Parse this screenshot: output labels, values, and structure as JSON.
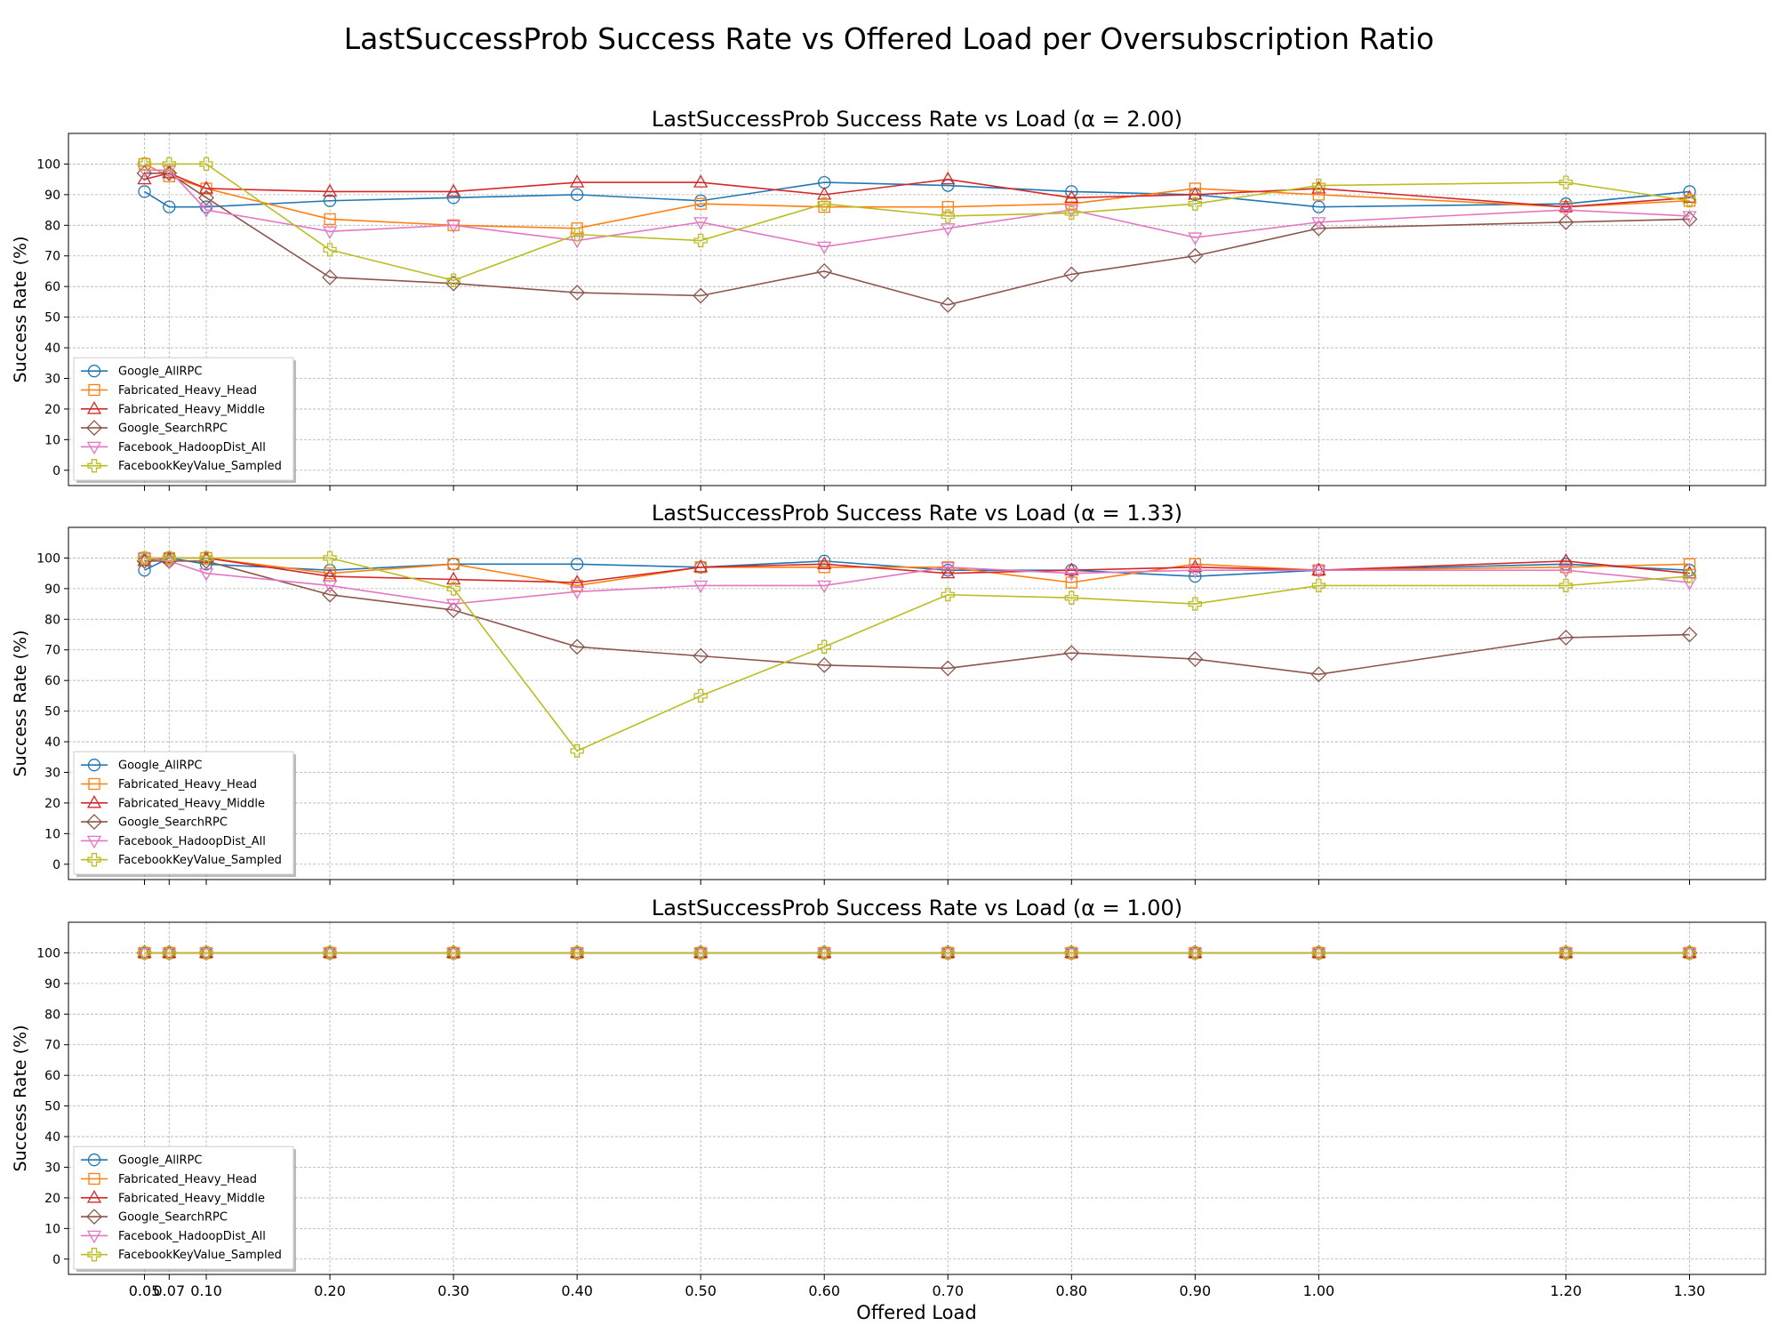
{
  "title": "LastSuccessProb Success Rate vs Offered Load per Oversubscription Ratio",
  "xlabel": "Offered Load",
  "x_tick_labels": [
    "0.05",
    "0.07",
    "0.10",
    "0.20",
    "0.30",
    "0.40",
    "0.50",
    "0.60",
    "0.70",
    "0.80",
    "0.90",
    "1.00",
    "1.20",
    "1.30"
  ],
  "y_tick_labels": [
    "0",
    "10",
    "20",
    "30",
    "40",
    "50",
    "60",
    "70",
    "80",
    "90",
    "100"
  ],
  "series_styles": [
    {
      "name": "Google_AllRPC",
      "color": "#1f77b4",
      "marker": "circle"
    },
    {
      "name": "Fabricated_Heavy_Head",
      "color": "#ff7f0e",
      "marker": "square"
    },
    {
      "name": "Fabricated_Heavy_Middle",
      "color": "#d62728",
      "marker": "triangle-up"
    },
    {
      "name": "Google_SearchRPC",
      "color": "#8c564b",
      "marker": "diamond"
    },
    {
      "name": "Facebook_HadoopDist_All",
      "color": "#e377c2",
      "marker": "triangle-down"
    },
    {
      "name": "FacebookKeyValue_Sampled",
      "color": "#bcbd22",
      "marker": "plus-filled"
    }
  ],
  "chart_data": [
    {
      "type": "line",
      "title": "LastSuccessProb Success Rate vs Load (α = 2.00)",
      "xlabel": "",
      "ylabel": "Success Rate (%)",
      "ylim": [
        -5,
        110
      ],
      "x": [
        0.05,
        0.07,
        0.1,
        0.2,
        0.3,
        0.4,
        0.5,
        0.6,
        0.7,
        0.8,
        0.9,
        1.0,
        1.2,
        1.3
      ],
      "grid": true,
      "legend": "lower-left",
      "series": [
        {
          "name": "Google_AllRPC",
          "values": [
            91,
            86,
            86,
            88,
            89,
            90,
            88,
            94,
            93,
            91,
            90,
            86,
            87,
            91
          ]
        },
        {
          "name": "Fabricated_Heavy_Head",
          "values": [
            100,
            96,
            92,
            82,
            80,
            79,
            87,
            86,
            86,
            87,
            92,
            90,
            86,
            88
          ]
        },
        {
          "name": "Fabricated_Heavy_Middle",
          "values": [
            95,
            97,
            92,
            91,
            91,
            94,
            94,
            90,
            95,
            89,
            90,
            92,
            86,
            89
          ]
        },
        {
          "name": "Google_SearchRPC",
          "values": [
            97,
            97,
            89,
            63,
            61,
            58,
            57,
            65,
            54,
            64,
            70,
            79,
            81,
            82
          ]
        },
        {
          "name": "Facebook_HadoopDist_All",
          "values": [
            98,
            98,
            85,
            78,
            80,
            75,
            81,
            73,
            79,
            85,
            76,
            81,
            85,
            83
          ]
        },
        {
          "name": "FacebookKeyValue_Sampled",
          "values": [
            100,
            100,
            100,
            72,
            62,
            77,
            75,
            87,
            83,
            84,
            87,
            93,
            94,
            88
          ]
        }
      ]
    },
    {
      "type": "line",
      "title": "LastSuccessProb Success Rate vs Load (α = 1.33)",
      "xlabel": "",
      "ylabel": "Success Rate (%)",
      "ylim": [
        -5,
        110
      ],
      "x": [
        0.05,
        0.07,
        0.1,
        0.2,
        0.3,
        0.4,
        0.5,
        0.6,
        0.7,
        0.8,
        0.9,
        1.0,
        1.2,
        1.3
      ],
      "grid": true,
      "legend": "lower-left",
      "series": [
        {
          "name": "Google_AllRPC",
          "values": [
            96,
            100,
            98,
            96,
            98,
            98,
            97,
            99,
            96,
            96,
            94,
            96,
            98,
            96
          ]
        },
        {
          "name": "Fabricated_Heavy_Head",
          "values": [
            100,
            100,
            100,
            95,
            98,
            91,
            97,
            97,
            97,
            92,
            98,
            96,
            97,
            98
          ]
        },
        {
          "name": "Fabricated_Heavy_Middle",
          "values": [
            99,
            100,
            100,
            94,
            93,
            92,
            97,
            98,
            95,
            96,
            97,
            96,
            99,
            95
          ]
        },
        {
          "name": "Google_SearchRPC",
          "values": [
            99,
            99,
            99,
            88,
            83,
            71,
            68,
            65,
            64,
            69,
            67,
            62,
            74,
            75
          ]
        },
        {
          "name": "Facebook_HadoopDist_All",
          "values": [
            100,
            99,
            95,
            91,
            85,
            89,
            91,
            91,
            97,
            95,
            96,
            96,
            96,
            92
          ]
        },
        {
          "name": "FacebookKeyValue_Sampled",
          "values": [
            100,
            100,
            100,
            100,
            90,
            37,
            55,
            71,
            88,
            87,
            85,
            91,
            91,
            94
          ]
        }
      ]
    },
    {
      "type": "line",
      "title": "LastSuccessProb Success Rate vs Load (α = 1.00)",
      "xlabel": "Offered Load",
      "ylabel": "Success Rate (%)",
      "ylim": [
        -5,
        110
      ],
      "x": [
        0.05,
        0.07,
        0.1,
        0.2,
        0.3,
        0.4,
        0.5,
        0.6,
        0.7,
        0.8,
        0.9,
        1.0,
        1.2,
        1.3
      ],
      "grid": true,
      "legend": "lower-left",
      "series": [
        {
          "name": "Google_AllRPC",
          "values": [
            100,
            100,
            100,
            100,
            100,
            100,
            100,
            100,
            100,
            100,
            100,
            100,
            100,
            100
          ]
        },
        {
          "name": "Fabricated_Heavy_Head",
          "values": [
            100,
            100,
            100,
            100,
            100,
            100,
            100,
            100,
            100,
            100,
            100,
            100,
            100,
            100
          ]
        },
        {
          "name": "Fabricated_Heavy_Middle",
          "values": [
            100,
            100,
            100,
            100,
            100,
            100,
            100,
            100,
            100,
            100,
            100,
            100,
            100,
            100
          ]
        },
        {
          "name": "Google_SearchRPC",
          "values": [
            100,
            100,
            100,
            100,
            100,
            100,
            100,
            100,
            100,
            100,
            100,
            100,
            100,
            100
          ]
        },
        {
          "name": "Facebook_HadoopDist_All",
          "values": [
            100,
            100,
            100,
            100,
            100,
            100,
            100,
            100,
            100,
            100,
            100,
            100,
            100,
            100
          ]
        },
        {
          "name": "FacebookKeyValue_Sampled",
          "values": [
            100,
            100,
            100,
            100,
            100,
            100,
            100,
            100,
            100,
            100,
            100,
            100,
            100,
            100
          ]
        }
      ]
    }
  ]
}
